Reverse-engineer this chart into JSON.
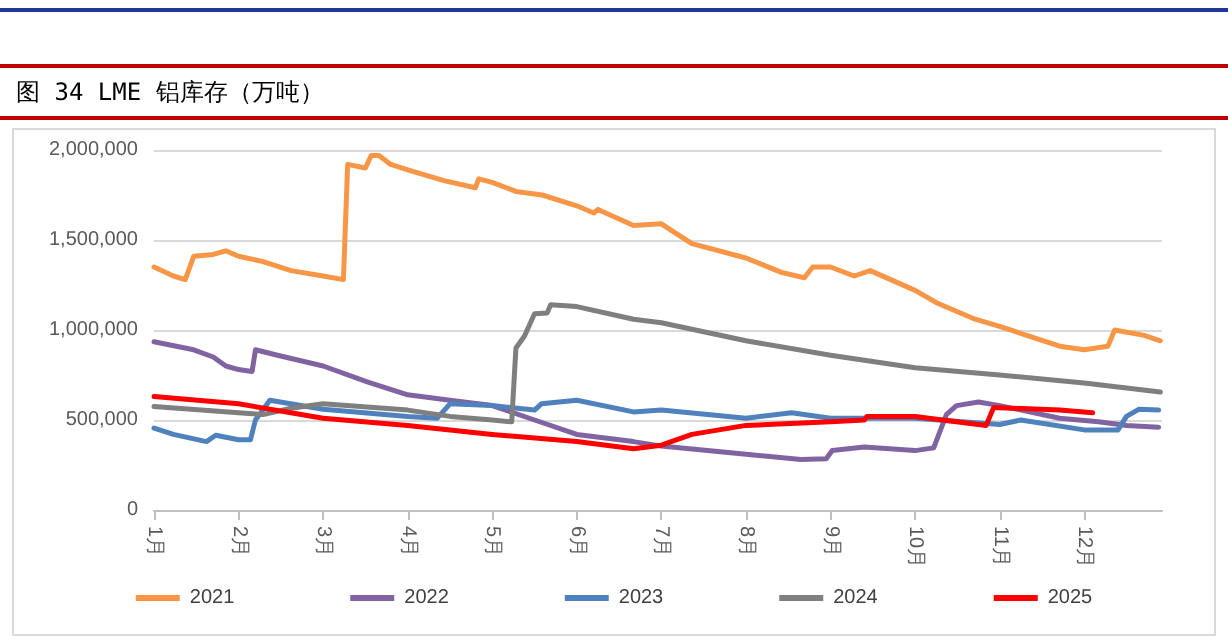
{
  "chart_data": {
    "type": "line",
    "title": "图 34 LME 铝库存（万吨）",
    "xlim": [
      1,
      12.92
    ],
    "xticks": [
      {
        "value": 1,
        "label": "1月"
      },
      {
        "value": 2,
        "label": "2月"
      },
      {
        "value": 3,
        "label": "3月"
      },
      {
        "value": 4,
        "label": "4月"
      },
      {
        "value": 5,
        "label": "5月"
      },
      {
        "value": 6,
        "label": "6月"
      },
      {
        "value": 7,
        "label": "7月"
      },
      {
        "value": 8,
        "label": "8月"
      },
      {
        "value": 9,
        "label": "9月"
      },
      {
        "value": 10,
        "label": "10月"
      },
      {
        "value": 11,
        "label": "11月"
      },
      {
        "value": 12,
        "label": "12月"
      }
    ],
    "ylim": [
      0,
      2000000
    ],
    "yticks": [
      {
        "value": 0,
        "label": "0"
      },
      {
        "value": 500000,
        "label": "500,000"
      },
      {
        "value": 1000000,
        "label": "1,000,000"
      },
      {
        "value": 1500000,
        "label": "1,500,000"
      },
      {
        "value": 2000000,
        "label": "2,000,000"
      }
    ],
    "grid": "y",
    "legend": "bottom",
    "marker": "none",
    "line_style": "solid",
    "series": [
      {
        "name": "2021",
        "color": "#f79646",
        "x": [
          1,
          1.23,
          1.37,
          1.47,
          1.7,
          1.85,
          2,
          2.29,
          2.62,
          3,
          3.24,
          3.29,
          3.5,
          3.57,
          3.66,
          3.8,
          4,
          4.43,
          4.8,
          4.84,
          5,
          5.28,
          5.59,
          6,
          6.2,
          6.25,
          6.67,
          7,
          7.36,
          8,
          8.42,
          8.69,
          8.79,
          9,
          9.28,
          9.47,
          10,
          10.26,
          10.71,
          11,
          11.71,
          12,
          12.28,
          12.36,
          12.71,
          12.9
        ],
        "values": [
          1350000,
          1300000,
          1280000,
          1410000,
          1420000,
          1440000,
          1410000,
          1380000,
          1330000,
          1300000,
          1280000,
          1920000,
          1900000,
          1970000,
          1970000,
          1920000,
          1890000,
          1830000,
          1790000,
          1840000,
          1820000,
          1770000,
          1750000,
          1690000,
          1650000,
          1670000,
          1580000,
          1590000,
          1480000,
          1400000,
          1320000,
          1290000,
          1350000,
          1350000,
          1300000,
          1330000,
          1220000,
          1150000,
          1060000,
          1020000,
          910000,
          890000,
          910000,
          1000000,
          970000,
          940000
        ]
      },
      {
        "name": "2022",
        "color": "#8064a2",
        "x": [
          1,
          1.47,
          1.7,
          1.85,
          2,
          2.16,
          2.2,
          2.46,
          3,
          3.53,
          4,
          4.5,
          5,
          5.5,
          6,
          6.67,
          7,
          8,
          8.65,
          8.95,
          9.02,
          9.4,
          10,
          10.22,
          10.37,
          10.49,
          10.75,
          11,
          11.71,
          12.17,
          12.5,
          12.88
        ],
        "values": [
          935000,
          890000,
          850000,
          800000,
          780000,
          770000,
          890000,
          860000,
          800000,
          710000,
          640000,
          610000,
          580000,
          500000,
          420000,
          380000,
          355000,
          310000,
          280000,
          285000,
          330000,
          350000,
          330000,
          345000,
          530000,
          580000,
          600000,
          580000,
          510000,
          490000,
          470000,
          460000
        ]
      },
      {
        "name": "2023",
        "color": "#4f81bd",
        "x": [
          1,
          1.23,
          1.62,
          1.73,
          2,
          2.14,
          2.2,
          2.37,
          3,
          4,
          4.35,
          4.5,
          5,
          5.5,
          5.58,
          6,
          6.67,
          7,
          8,
          8.54,
          9,
          10,
          11,
          11.25,
          12,
          12.4,
          12.5,
          12.65,
          12.88
        ],
        "values": [
          455000,
          420000,
          380000,
          415000,
          390000,
          390000,
          500000,
          610000,
          560000,
          520000,
          510000,
          590000,
          580000,
          555000,
          590000,
          610000,
          545000,
          555000,
          510000,
          540000,
          510000,
          510000,
          475000,
          500000,
          445000,
          445000,
          520000,
          560000,
          555000
        ]
      },
      {
        "name": "2024",
        "color": "#7f7f7f",
        "x": [
          1,
          2,
          2.29,
          2.62,
          3,
          4,
          4.5,
          5,
          5.23,
          5.28,
          5.38,
          5.5,
          5.65,
          5.69,
          6,
          6.67,
          7,
          8,
          9,
          10,
          11,
          12,
          12.9
        ],
        "values": [
          575000,
          540000,
          530000,
          565000,
          590000,
          555000,
          520000,
          500000,
          490000,
          900000,
          965000,
          1090000,
          1095000,
          1140000,
          1130000,
          1060000,
          1040000,
          940000,
          860000,
          790000,
          750000,
          705000,
          655000
        ]
      },
      {
        "name": "2025",
        "color": "#ff0000",
        "x": [
          1,
          2,
          3,
          4,
          5,
          6,
          6.67,
          7,
          7.36,
          8,
          9,
          9.4,
          9.43,
          10,
          10.84,
          10.93,
          11.71,
          12.1
        ],
        "values": [
          630000,
          590000,
          510000,
          470000,
          420000,
          380000,
          340000,
          360000,
          420000,
          470000,
          490000,
          500000,
          520000,
          520000,
          470000,
          570000,
          555000,
          540000
        ]
      }
    ]
  }
}
